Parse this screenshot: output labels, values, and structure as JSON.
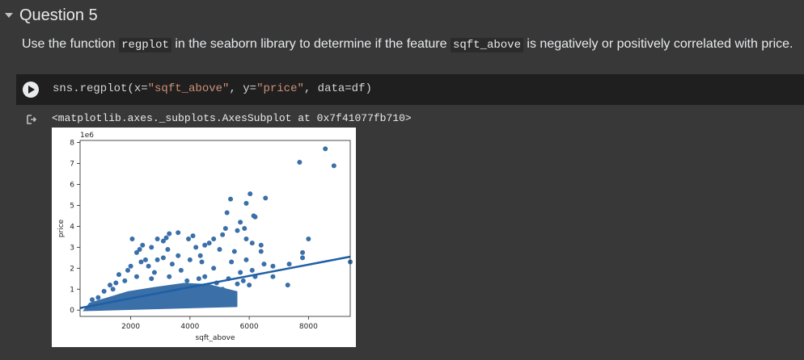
{
  "section": {
    "title": "Question 5",
    "description_parts": [
      {
        "text": "Use the function ",
        "code": false
      },
      {
        "text": "regplot",
        "code": true
      },
      {
        "text": " in the seaborn library to determine if the feature ",
        "code": false
      },
      {
        "text": "sqft_above",
        "code": true
      },
      {
        "text": " is negatively or positively correlated with price.",
        "code": false
      }
    ]
  },
  "cell": {
    "code_prefix": "sns.regplot(x=",
    "code_str1": "\"sqft_above\"",
    "code_mid": ", y=",
    "code_str2": "\"price\"",
    "code_suffix": ", data=df)",
    "output_text": "<matplotlib.axes._subplots.AxesSubplot at 0x7f41077fb710>"
  },
  "colors": {
    "point": "#3a6fa8",
    "line": "#1f5fa6",
    "background": "#383838",
    "cell_background": "#1f1f1f",
    "string_literal": "#ce9178"
  },
  "icons": {
    "run": "play-circle-icon",
    "output": "output-arrow-icon",
    "collapse": "caret-down-icon"
  },
  "chart_data": {
    "type": "scatter",
    "xlabel": "sqft_above",
    "ylabel": "price",
    "offset_label": "1e6",
    "xlim": [
      290,
      9410
    ],
    "ylim": [
      -0.3,
      8.1
    ],
    "xticks": [
      2000,
      4000,
      6000,
      8000
    ],
    "yticks": [
      0,
      1,
      2,
      3,
      4,
      5,
      6,
      7,
      8
    ],
    "grid": false,
    "regression_line": {
      "x": [
        290,
        9410
      ],
      "y": [
        0.1,
        2.55
      ]
    },
    "points": [
      [
        8570,
        7.7
      ],
      [
        7700,
        7.06
      ],
      [
        8860,
        6.89
      ],
      [
        9410,
        2.3
      ],
      [
        6030,
        5.55
      ],
      [
        5900,
        5.1
      ],
      [
        6550,
        5.35
      ],
      [
        5370,
        5.3
      ],
      [
        6150,
        4.5
      ],
      [
        6200,
        4.45
      ],
      [
        5250,
        4.65
      ],
      [
        5700,
        4.2
      ],
      [
        5840,
        3.9
      ],
      [
        5600,
        3.8
      ],
      [
        5900,
        3.4
      ],
      [
        6100,
        3.2
      ],
      [
        6400,
        3.1
      ],
      [
        6400,
        2.8
      ],
      [
        8000,
        3.4
      ],
      [
        7800,
        2.75
      ],
      [
        7800,
        2.5
      ],
      [
        7350,
        2.2
      ],
      [
        7300,
        1.2
      ],
      [
        6500,
        2.2
      ],
      [
        6800,
        2.1
      ],
      [
        5900,
        2.4
      ],
      [
        5500,
        2.8
      ],
      [
        6100,
        1.9
      ],
      [
        5200,
        3.9
      ],
      [
        4800,
        3.4
      ],
      [
        4650,
        3.2
      ],
      [
        4350,
        2.6
      ],
      [
        3950,
        3.4
      ],
      [
        3600,
        3.7
      ],
      [
        3300,
        3.65
      ],
      [
        3100,
        3.3
      ],
      [
        2900,
        3.4
      ],
      [
        2700,
        3.0
      ],
      [
        2400,
        3.1
      ],
      [
        2300,
        2.9
      ],
      [
        2050,
        3.4
      ],
      [
        2200,
        2.75
      ],
      [
        3250,
        2.9
      ],
      [
        5100,
        3.6
      ],
      [
        3200,
        3.45
      ],
      [
        4100,
        3.55
      ],
      [
        4500,
        3.1
      ],
      [
        5000,
        2.9
      ],
      [
        5400,
        2.3
      ],
      [
        5700,
        1.8
      ],
      [
        6200,
        1.6
      ],
      [
        4800,
        2.0
      ],
      [
        4000,
        2.4
      ],
      [
        3400,
        2.2
      ],
      [
        2600,
        2.1
      ],
      [
        1900,
        1.9
      ],
      [
        1600,
        1.7
      ],
      [
        2800,
        1.8
      ],
      [
        3700,
        1.9
      ],
      [
        4400,
        2.3
      ],
      [
        3100,
        2.5
      ],
      [
        2500,
        2.4
      ],
      [
        2000,
        2.1
      ],
      [
        5300,
        1.5
      ],
      [
        6000,
        1.2
      ],
      [
        4700,
        1.1
      ],
      [
        5800,
        1.4
      ],
      [
        5100,
        1.0
      ],
      [
        4900,
        1.3
      ],
      [
        4300,
        1.5
      ],
      [
        1300,
        1.2
      ],
      [
        1100,
        0.9
      ],
      [
        900,
        0.6
      ],
      [
        700,
        0.5
      ],
      [
        1500,
        1.3
      ],
      [
        2200,
        1.6
      ],
      [
        2700,
        1.5
      ],
      [
        3300,
        1.6
      ],
      [
        3900,
        1.4
      ],
      [
        4500,
        1.6
      ],
      [
        3600,
        2.6
      ],
      [
        2900,
        2.4
      ],
      [
        2350,
        2.3
      ],
      [
        1800,
        1.4
      ],
      [
        1400,
        1.0
      ],
      [
        6800,
        1.6
      ],
      [
        5600,
        1.25
      ],
      [
        4200,
        3.0
      ]
    ]
  }
}
